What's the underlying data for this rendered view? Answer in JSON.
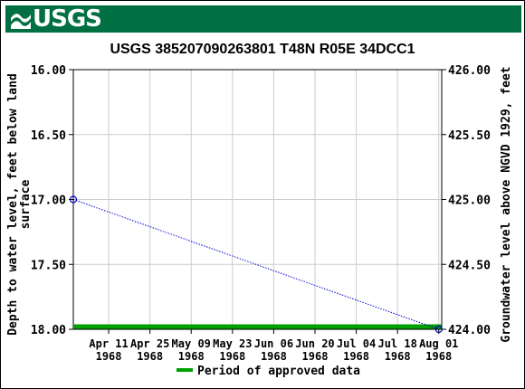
{
  "banner": {
    "logo_text": "USGS",
    "color": "#006f41"
  },
  "chart_data": {
    "type": "line",
    "title": "USGS 385207090263801 T48N R05E 34DCC1",
    "ylabel_left": "Depth to water level, feet below land surface",
    "ylabel_right": "Groundwater level above NGVD 1929, feet",
    "y_left": {
      "min": 16.0,
      "max": 18.0,
      "inverted": true,
      "ticks": [
        "16.00",
        "16.50",
        "17.00",
        "17.50",
        "18.00"
      ]
    },
    "y_right": {
      "min": 424.0,
      "max": 426.0,
      "ticks": [
        "426.00",
        "425.50",
        "425.00",
        "424.50",
        "424.00"
      ]
    },
    "x_range": [
      "1968-03-30",
      "1968-08-02"
    ],
    "x_ticks": [
      {
        "date": "1968-04-11",
        "label": [
          "Apr 11",
          "1968"
        ]
      },
      {
        "date": "1968-04-25",
        "label": [
          "Apr 25",
          "1968"
        ]
      },
      {
        "date": "1968-05-09",
        "label": [
          "May 09",
          "1968"
        ]
      },
      {
        "date": "1968-05-23",
        "label": [
          "May 23",
          "1968"
        ]
      },
      {
        "date": "1968-06-06",
        "label": [
          "Jun 06",
          "1968"
        ]
      },
      {
        "date": "1968-06-20",
        "label": [
          "Jun 20",
          "1968"
        ]
      },
      {
        "date": "1968-07-04",
        "label": [
          "Jul 04",
          "1968"
        ]
      },
      {
        "date": "1968-07-18",
        "label": [
          "Jul 18",
          "1968"
        ]
      },
      {
        "date": "1968-08-01",
        "label": [
          "Aug 01",
          "1968"
        ]
      }
    ],
    "series": [
      {
        "points": [
          {
            "date": "1968-03-30",
            "y": 17.0
          },
          {
            "date": "1968-08-01",
            "y": 18.0
          }
        ],
        "color": "#0000cc"
      }
    ],
    "approved_period": {
      "start": "1968-03-30",
      "end": "1968-08-01",
      "color": "#00a000"
    },
    "legend": {
      "label": "Period of approved data",
      "position": "bottom"
    },
    "grid": true
  }
}
